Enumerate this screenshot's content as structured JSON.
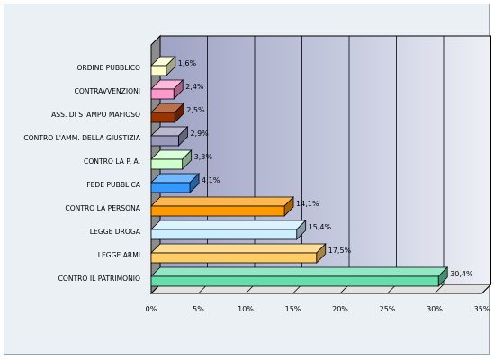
{
  "chart_data": {
    "type": "bar",
    "orientation": "horizontal",
    "style": "3d",
    "categories": [
      "ORDINE PUBBLICO",
      "CONTRAVVENZIONI",
      "ASS. DI STAMPO MAFIOSO",
      "CONTRO L'AMM. DELLA GIUSTIZIA",
      "CONTRO LA P. A.",
      "FEDE PUBBLICA",
      "CONTRO LA PERSONA",
      "LEGGE DROGA",
      "LEGGE ARMI",
      "CONTRO IL PATRIMONIO"
    ],
    "values": [
      1.6,
      2.4,
      2.5,
      2.9,
      3.3,
      4.1,
      14.1,
      15.4,
      17.5,
      30.4
    ],
    "value_labels": [
      "1,6%",
      "2,4%",
      "2,5%",
      "2,9%",
      "3,3%",
      "4,1%",
      "14,1%",
      "15,4%",
      "17,5%",
      "30,4%"
    ],
    "bar_colors": [
      "#ffffcc",
      "#ff99cc",
      "#993300",
      "#9999bb",
      "#ccffcc",
      "#3399ff",
      "#ff9900",
      "#cceeff",
      "#ffcc66",
      "#66ddaa"
    ],
    "xlim": [
      0,
      35
    ],
    "xticks": [
      0,
      5,
      10,
      15,
      20,
      25,
      30,
      35
    ],
    "xtick_labels": [
      "0%",
      "5%",
      "10%",
      "15%",
      "20%",
      "25%",
      "30%",
      "35%"
    ],
    "title": "",
    "xlabel": "",
    "ylabel": "",
    "grid": true,
    "legend": false
  }
}
